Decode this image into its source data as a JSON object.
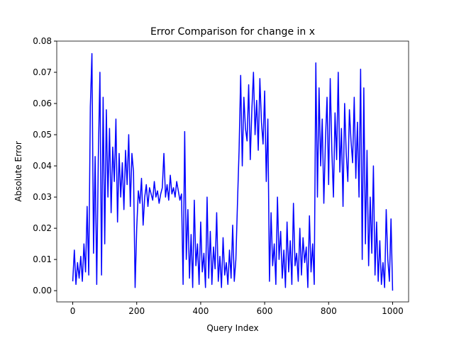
{
  "chart_data": {
    "type": "line",
    "title": "Error Comparison for change in x",
    "x_label": "Query Index",
    "y_label": "Absolute Error",
    "x": [
      0,
      5,
      10,
      15,
      20,
      25,
      30,
      35,
      40,
      45,
      50,
      55,
      60,
      65,
      70,
      75,
      80,
      85,
      90,
      95,
      100,
      105,
      110,
      115,
      120,
      125,
      130,
      135,
      140,
      145,
      150,
      155,
      160,
      165,
      170,
      175,
      180,
      185,
      190,
      195,
      200,
      205,
      210,
      215,
      220,
      225,
      230,
      235,
      240,
      245,
      250,
      255,
      260,
      265,
      270,
      275,
      280,
      285,
      290,
      295,
      300,
      305,
      310,
      315,
      320,
      325,
      330,
      335,
      340,
      345,
      350,
      355,
      360,
      365,
      370,
      375,
      380,
      385,
      390,
      395,
      400,
      405,
      410,
      415,
      420,
      425,
      430,
      435,
      440,
      445,
      450,
      455,
      460,
      465,
      470,
      475,
      480,
      485,
      490,
      495,
      500,
      505,
      510,
      515,
      520,
      525,
      530,
      535,
      540,
      545,
      550,
      555,
      560,
      565,
      570,
      575,
      580,
      585,
      590,
      595,
      600,
      605,
      610,
      615,
      620,
      625,
      630,
      635,
      640,
      645,
      650,
      655,
      660,
      665,
      670,
      675,
      680,
      685,
      690,
      695,
      700,
      705,
      710,
      715,
      720,
      725,
      730,
      735,
      740,
      745,
      750,
      755,
      760,
      765,
      770,
      775,
      780,
      785,
      790,
      795,
      800,
      805,
      810,
      815,
      820,
      825,
      830,
      835,
      840,
      845,
      850,
      855,
      860,
      865,
      870,
      875,
      880,
      885,
      890,
      895,
      900,
      905,
      910,
      915,
      920,
      925,
      930,
      935,
      940,
      945,
      950,
      955,
      960,
      965,
      970,
      975,
      980,
      985,
      990,
      995,
      1000
    ],
    "series": [
      {
        "color": "#0000ff",
        "values": [
          0.003,
          0.013,
          0.002,
          0.009,
          0.004,
          0.011,
          0.003,
          0.015,
          0.006,
          0.027,
          0.005,
          0.059,
          0.076,
          0.012,
          0.043,
          0.002,
          0.043,
          0.07,
          0.005,
          0.062,
          0.015,
          0.058,
          0.03,
          0.052,
          0.025,
          0.046,
          0.035,
          0.055,
          0.022,
          0.044,
          0.03,
          0.041,
          0.026,
          0.045,
          0.034,
          0.05,
          0.027,
          0.044,
          0.038,
          0.001,
          0.02,
          0.032,
          0.028,
          0.036,
          0.021,
          0.03,
          0.034,
          0.027,
          0.033,
          0.031,
          0.029,
          0.035,
          0.03,
          0.032,
          0.028,
          0.031,
          0.033,
          0.044,
          0.03,
          0.034,
          0.029,
          0.037,
          0.031,
          0.033,
          0.03,
          0.035,
          0.032,
          0.029,
          0.031,
          0.002,
          0.051,
          0.01,
          0.026,
          0.004,
          0.018,
          0.001,
          0.029,
          0.008,
          0.015,
          0.002,
          0.022,
          0.006,
          0.012,
          0.001,
          0.03,
          0.004,
          0.019,
          0.002,
          0.014,
          0.007,
          0.025,
          0.003,
          0.011,
          0.001,
          0.017,
          0.005,
          0.009,
          0.002,
          0.013,
          0.004,
          0.021,
          0.003,
          0.01,
          0.028,
          0.045,
          0.069,
          0.04,
          0.062,
          0.052,
          0.048,
          0.066,
          0.042,
          0.058,
          0.07,
          0.05,
          0.061,
          0.045,
          0.068,
          0.054,
          0.047,
          0.064,
          0.035,
          0.055,
          0.003,
          0.025,
          0.008,
          0.015,
          0.002,
          0.03,
          0.01,
          0.019,
          0.004,
          0.013,
          0.001,
          0.022,
          0.006,
          0.016,
          0.002,
          0.028,
          0.008,
          0.012,
          0.003,
          0.02,
          0.005,
          0.017,
          0.009,
          0.014,
          0.001,
          0.024,
          0.006,
          0.015,
          0.002,
          0.073,
          0.03,
          0.065,
          0.04,
          0.055,
          0.028,
          0.048,
          0.062,
          0.034,
          0.068,
          0.045,
          0.03,
          0.057,
          0.042,
          0.07,
          0.038,
          0.052,
          0.027,
          0.06,
          0.044,
          0.035,
          0.058,
          0.048,
          0.041,
          0.062,
          0.036,
          0.054,
          0.03,
          0.071,
          0.01,
          0.065,
          0.015,
          0.045,
          0.008,
          0.03,
          0.012,
          0.04,
          0.005,
          0.022,
          0.003,
          0.016,
          0.002,
          0.009,
          0.001,
          0.026,
          0.01,
          0.003,
          0.023,
          0.0
        ]
      }
    ],
    "xlim": [
      -50,
      1050
    ],
    "ylim": [
      -0.0036,
      0.08
    ],
    "xticks": [
      0,
      200,
      400,
      600,
      800,
      1000
    ],
    "yticks": [
      {
        "value": 0,
        "label": "0.00"
      },
      {
        "value": 0.01,
        "label": "0.01"
      },
      {
        "value": 0.02,
        "label": "0.02"
      },
      {
        "value": 0.03,
        "label": "0.03"
      },
      {
        "value": 0.04,
        "label": "0.04"
      },
      {
        "value": 0.05,
        "label": "0.05"
      },
      {
        "value": 0.06,
        "label": "0.06"
      },
      {
        "value": 0.07,
        "label": "0.07"
      },
      {
        "value": 0.08,
        "label": "0.08"
      }
    ],
    "grid": false
  }
}
